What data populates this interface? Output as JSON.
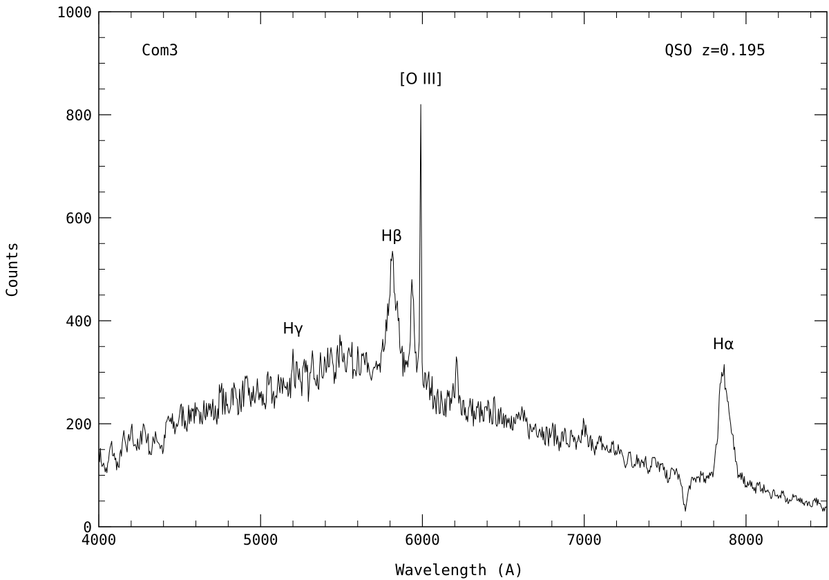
{
  "chart_data": {
    "type": "line",
    "xlabel": "Wavelength (A)",
    "ylabel": "Counts",
    "xlim": [
      4000,
      8500
    ],
    "ylim": [
      0,
      1000
    ],
    "x_ticks": [
      "4000",
      "5000",
      "6000",
      "7000",
      "8000"
    ],
    "y_ticks": [
      "0",
      "200",
      "400",
      "600",
      "800",
      "1000"
    ],
    "grid": false,
    "legend": "none",
    "annotations": {
      "object_name": "Com3",
      "object_type": "QSO z=0.195"
    },
    "line_labels": [
      {
        "text": "[O III]",
        "x": 5990,
        "y": 860
      },
      {
        "text": "Hβ",
        "x": 5810,
        "y": 555
      },
      {
        "text": "Hγ",
        "x": 5200,
        "y": 375
      },
      {
        "text": "Hα",
        "x": 7860,
        "y": 345
      }
    ],
    "series": [
      {
        "x": [
          4000,
          4025,
          4050,
          4075,
          4100,
          4125,
          4150,
          4175,
          4200,
          4225,
          4250,
          4275,
          4300,
          4325,
          4350,
          4375,
          4400,
          4425,
          4450,
          4475,
          4500,
          4525,
          4550,
          4575,
          4600,
          4625,
          4650,
          4675,
          4700,
          4725,
          4750,
          4775,
          4800,
          4825,
          4850,
          4875,
          4900,
          4925,
          4950,
          4975,
          5000,
          5025,
          5050,
          5075,
          5100,
          5125,
          5150,
          5175,
          5190,
          5200,
          5210,
          5225,
          5250,
          5275,
          5300,
          5325,
          5350,
          5375,
          5400,
          5420,
          5440,
          5460,
          5480,
          5500,
          5520,
          5540,
          5560,
          5580,
          5600,
          5620,
          5640,
          5660,
          5680,
          5700,
          5720,
          5740,
          5760,
          5780,
          5795,
          5805,
          5815,
          5825,
          5835,
          5850,
          5870,
          5890,
          5910,
          5925,
          5935,
          5950,
          5965,
          5980,
          5990,
          5998,
          6010,
          6030,
          6050,
          6075,
          6100,
          6125,
          6150,
          6175,
          6200,
          6210,
          6225,
          6250,
          6275,
          6300,
          6325,
          6350,
          6375,
          6400,
          6425,
          6450,
          6475,
          6500,
          6525,
          6550,
          6575,
          6600,
          6625,
          6650,
          6675,
          6700,
          6725,
          6750,
          6775,
          6800,
          6825,
          6850,
          6875,
          6900,
          6925,
          6950,
          6975,
          7000,
          7025,
          7050,
          7075,
          7100,
          7125,
          7150,
          7175,
          7200,
          7225,
          7250,
          7275,
          7300,
          7325,
          7350,
          7375,
          7400,
          7425,
          7450,
          7475,
          7500,
          7525,
          7550,
          7575,
          7600,
          7625,
          7650,
          7675,
          7700,
          7725,
          7750,
          7775,
          7800,
          7820,
          7835,
          7850,
          7865,
          7880,
          7900,
          7925,
          7950,
          7975,
          8000,
          8025,
          8050,
          8075,
          8100,
          8125,
          8150,
          8175,
          8200,
          8225,
          8250,
          8275,
          8300,
          8325,
          8350,
          8375,
          8400,
          8425,
          8450,
          8475,
          8500
        ],
        "y": [
          150,
          120,
          105,
          160,
          130,
          115,
          175,
          145,
          190,
          160,
          150,
          200,
          170,
          140,
          185,
          160,
          150,
          210,
          200,
          190,
          220,
          215,
          205,
          230,
          215,
          200,
          245,
          225,
          230,
          210,
          260,
          240,
          225,
          270,
          250,
          240,
          270,
          255,
          245,
          265,
          250,
          240,
          275,
          255,
          250,
          290,
          270,
          260,
          295,
          345,
          275,
          320,
          280,
          300,
          270,
          325,
          295,
          310,
          320,
          310,
          335,
          300,
          325,
          360,
          320,
          340,
          330,
          305,
          350,
          300,
          325,
          300,
          290,
          310,
          305,
          300,
          340,
          380,
          440,
          520,
          535,
          455,
          420,
          400,
          340,
          300,
          310,
          360,
          480,
          380,
          300,
          360,
          820,
          320,
          270,
          280,
          270,
          255,
          240,
          235,
          245,
          250,
          250,
          330,
          240,
          245,
          215,
          235,
          210,
          230,
          205,
          225,
          215,
          230,
          200,
          220,
          210,
          215,
          200,
          215,
          205,
          195,
          185,
          200,
          190,
          185,
          175,
          185,
          175,
          165,
          180,
          160,
          175,
          150,
          165,
          200,
          155,
          170,
          150,
          165,
          155,
          145,
          160,
          140,
          150,
          120,
          145,
          115,
          140,
          125,
          130,
          110,
          135,
          115,
          120,
          100,
          95,
          110,
          105,
          80,
          30,
          80,
          90,
          95,
          100,
          85,
          105,
          110,
          160,
          255,
          300,
          315,
          260,
          210,
          150,
          95,
          105,
          80,
          90,
          70,
          80,
          75,
          70,
          60,
          70,
          55,
          65,
          50,
          50,
          60,
          55,
          45,
          50,
          40,
          55,
          45,
          30,
          40
        ]
      }
    ]
  }
}
